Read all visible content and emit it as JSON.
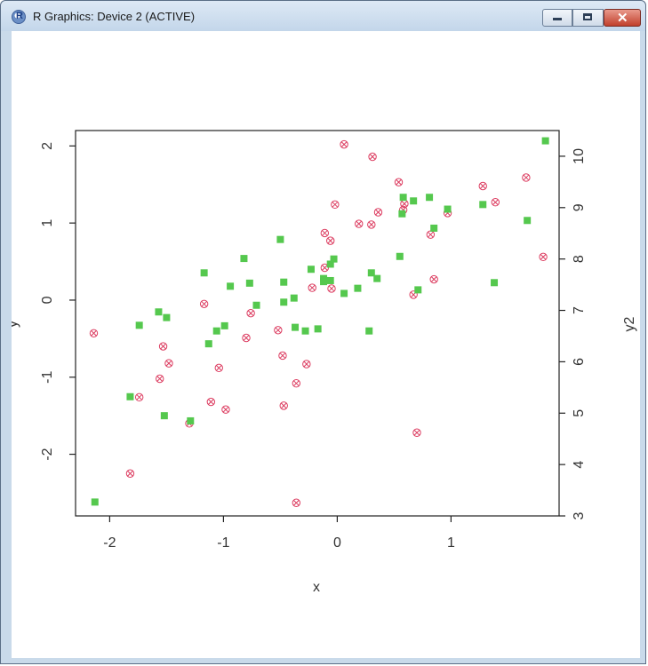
{
  "window": {
    "title": "R Graphics: Device 2 (ACTIVE)",
    "icon": "r-logo-icon",
    "buttons": [
      "minimize-icon",
      "maximize-icon",
      "close-icon"
    ]
  },
  "chart_data": {
    "type": "scatter",
    "xlabel": "x",
    "ylabel": "y",
    "y2label": "y2",
    "xlim": [
      -2.3,
      1.95
    ],
    "ylim": [
      -2.8,
      2.2
    ],
    "y2lim": [
      3.0,
      10.5
    ],
    "xticks": [
      -2,
      -1,
      0,
      1
    ],
    "yticks": [
      -2,
      -1,
      0,
      1,
      2
    ],
    "y2ticks": [
      3,
      4,
      5,
      6,
      7,
      8,
      9,
      10
    ],
    "colors": {
      "series1": "#dc3c60",
      "series2": "#55c84e"
    },
    "series": [
      {
        "axis": "left",
        "marker": "circle-x",
        "color": "#dc3c60",
        "points": [
          [
            -2.14,
            -0.43
          ],
          [
            -1.82,
            -2.25
          ],
          [
            -1.74,
            -1.26
          ],
          [
            -1.56,
            -1.02
          ],
          [
            -1.53,
            -0.6
          ],
          [
            -1.48,
            -0.82
          ],
          [
            -1.3,
            -1.6
          ],
          [
            -1.17,
            -0.05
          ],
          [
            -1.11,
            -1.32
          ],
          [
            -1.04,
            -0.88
          ],
          [
            -0.98,
            -1.42
          ],
          [
            -0.8,
            -0.49
          ],
          [
            -0.76,
            -0.17
          ],
          [
            -0.52,
            -0.39
          ],
          [
            -0.48,
            -0.72
          ],
          [
            -0.47,
            -1.37
          ],
          [
            -0.36,
            -1.08
          ],
          [
            -0.36,
            -2.63
          ],
          [
            -0.27,
            -0.83
          ],
          [
            -0.22,
            0.16
          ],
          [
            -0.11,
            0.42
          ],
          [
            -0.11,
            0.87
          ],
          [
            -0.06,
            0.77
          ],
          [
            -0.05,
            0.15
          ],
          [
            -0.02,
            1.24
          ],
          [
            0.06,
            2.02
          ],
          [
            0.19,
            0.99
          ],
          [
            0.3,
            0.98
          ],
          [
            0.31,
            1.86
          ],
          [
            0.36,
            1.14
          ],
          [
            0.54,
            1.53
          ],
          [
            0.58,
            1.17
          ],
          [
            0.59,
            1.25
          ],
          [
            0.67,
            0.07
          ],
          [
            0.7,
            -1.72
          ],
          [
            0.82,
            0.85
          ],
          [
            0.85,
            0.27
          ],
          [
            0.97,
            1.13
          ],
          [
            1.28,
            1.48
          ],
          [
            1.39,
            1.27
          ],
          [
            1.66,
            1.59
          ],
          [
            1.81,
            0.56
          ]
        ]
      },
      {
        "axis": "right",
        "marker": "square",
        "color": "#55c84e",
        "points": [
          [
            -2.13,
            3.27
          ],
          [
            -1.82,
            5.32
          ],
          [
            -1.74,
            6.71
          ],
          [
            -1.57,
            6.97
          ],
          [
            -1.52,
            4.95
          ],
          [
            -1.5,
            6.86
          ],
          [
            -1.29,
            4.85
          ],
          [
            -1.17,
            7.73
          ],
          [
            -1.13,
            6.35
          ],
          [
            -1.06,
            6.6
          ],
          [
            -0.99,
            6.7
          ],
          [
            -0.94,
            7.47
          ],
          [
            -0.82,
            8.01
          ],
          [
            -0.77,
            7.53
          ],
          [
            -0.71,
            7.1
          ],
          [
            -0.5,
            8.38
          ],
          [
            -0.47,
            7.55
          ],
          [
            -0.47,
            7.16
          ],
          [
            -0.38,
            7.24
          ],
          [
            -0.37,
            6.67
          ],
          [
            -0.28,
            6.6
          ],
          [
            -0.23,
            7.8
          ],
          [
            -0.17,
            6.64
          ],
          [
            -0.12,
            7.62
          ],
          [
            -0.12,
            7.56
          ],
          [
            -0.06,
            7.58
          ],
          [
            -0.06,
            7.9
          ],
          [
            -0.03,
            8.0
          ],
          [
            0.06,
            7.33
          ],
          [
            0.18,
            7.43
          ],
          [
            0.28,
            6.6
          ],
          [
            0.3,
            7.73
          ],
          [
            0.35,
            7.62
          ],
          [
            0.55,
            8.05
          ],
          [
            0.57,
            8.88
          ],
          [
            0.58,
            9.2
          ],
          [
            0.67,
            9.13
          ],
          [
            0.71,
            7.4
          ],
          [
            0.81,
            9.2
          ],
          [
            0.85,
            8.6
          ],
          [
            0.97,
            8.97
          ],
          [
            1.28,
            9.06
          ],
          [
            1.38,
            7.54
          ],
          [
            1.67,
            8.75
          ],
          [
            1.83,
            10.3
          ]
        ]
      }
    ]
  }
}
